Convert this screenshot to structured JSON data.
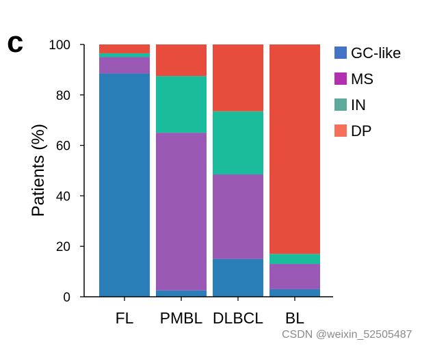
{
  "panel_label": "c",
  "watermark": "CSDN @weixin_52505487",
  "chart_data": {
    "type": "bar",
    "stacked": true,
    "categories": [
      "FL",
      "PMBL",
      "DLBCL",
      "BL"
    ],
    "series": [
      {
        "name": "GC-like",
        "color": "#2a7fb8",
        "legend_color": "#4472c4",
        "values": [
          88.5,
          2.5,
          15,
          3
        ]
      },
      {
        "name": "MS",
        "color": "#9b59b6",
        "legend_color": "#b22fb0",
        "values": [
          6.5,
          62.5,
          33.5,
          10
        ]
      },
      {
        "name": "IN",
        "color": "#1abc9c",
        "legend_color": "#5fa89c",
        "values": [
          1.5,
          22.5,
          25,
          4
        ]
      },
      {
        "name": "DP",
        "color": "#e74c3c",
        "legend_color": "#f4705a",
        "values": [
          3.5,
          12.5,
          26.5,
          83
        ]
      }
    ],
    "title": "",
    "xlabel": "",
    "ylabel": "Patients (%)",
    "ylim": [
      0,
      100
    ],
    "yticks": [
      "0",
      "20",
      "40",
      "60",
      "80",
      "100"
    ],
    "grid": false,
    "legend_position": "right"
  }
}
